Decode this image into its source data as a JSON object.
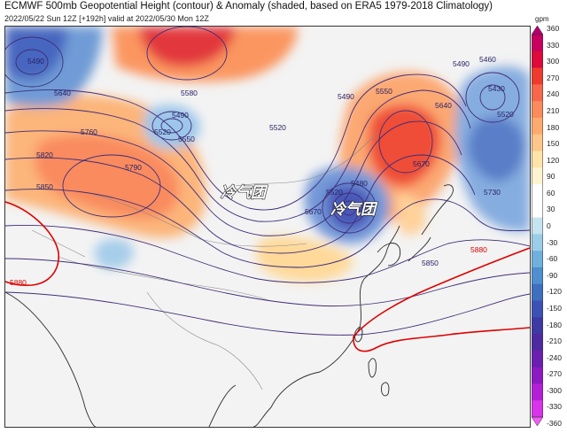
{
  "header": {
    "title": "ECMWF 500mb Geopotential Height (contour) & Anomaly (shaded, based on ERA5 1979-2018 Climatology)",
    "subtitle": "2022/05/22 Sun 12Z [+192h] valid at 2022/05/30 Mon 12Z"
  },
  "colorbar": {
    "unit": "gpm",
    "ticks": [
      "360",
      "330",
      "300",
      "270",
      "240",
      "210",
      "180",
      "150",
      "120",
      "90",
      "60",
      "30",
      "0",
      "-30",
      "-60",
      "-90",
      "-120",
      "-150",
      "-180",
      "-210",
      "-240",
      "-270",
      "-300",
      "-330",
      "-360"
    ],
    "colors_top_to_bottom": [
      "#b2006e",
      "#c8005f",
      "#dd0a3a",
      "#ef3b2c",
      "#f7674b",
      "#fb8a5c",
      "#fdaa6e",
      "#fec689",
      "#ffe3a8",
      "#fff4d0",
      "#ffffff",
      "#ffffff",
      "#c6e3f0",
      "#9ccde8",
      "#70b0dd",
      "#4f8fcf",
      "#3e6fc0",
      "#3b52b4",
      "#3d3aa5",
      "#4d2a9f",
      "#6a1fb0",
      "#8c1ac4",
      "#b31fd8",
      "#d933ec",
      "#f05cf5"
    ]
  },
  "map": {
    "contour_labels": [
      "5490",
      "5640",
      "5760",
      "5820",
      "5850",
      "5790",
      "5580",
      "5490",
      "5520",
      "5550",
      "5520",
      "5490",
      "5550",
      "5640",
      "5670",
      "5490",
      "5460",
      "5430",
      "5520",
      "5730",
      "5480",
      "5520",
      "5670",
      "5850",
      "5880",
      "5880"
    ],
    "annotations": [
      "冷气团",
      "冷气团"
    ],
    "colors": {
      "ridge_5880": "#e00000",
      "contour": "#3f2d78",
      "coast": "#222222",
      "border": "#888888"
    }
  }
}
